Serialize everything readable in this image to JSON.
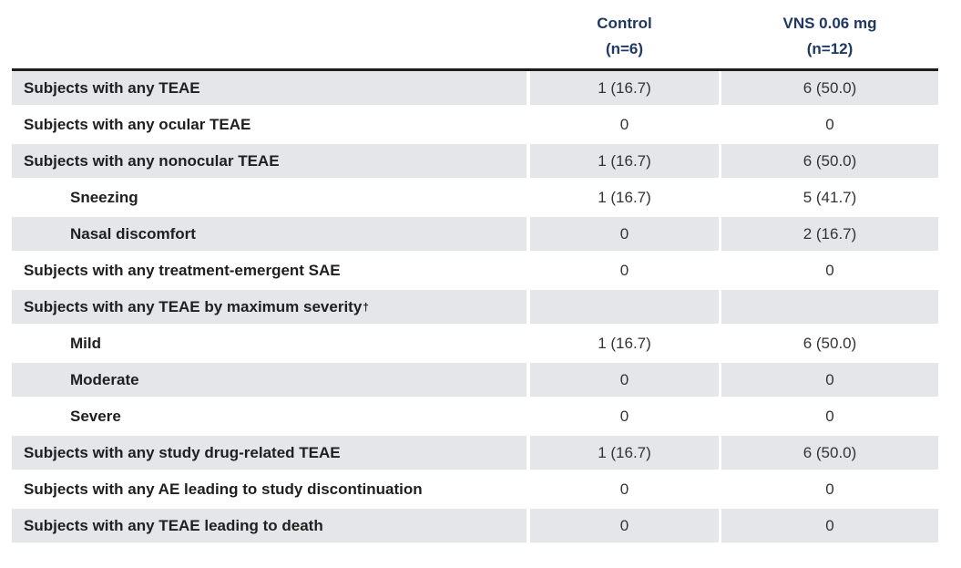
{
  "table": {
    "columns": [
      {
        "line1": "Control",
        "line2": "(n=6)"
      },
      {
        "line1": "VNS 0.06 mg",
        "line2": "(n=12)"
      }
    ],
    "rows": [
      {
        "label": "Subjects with any TEAE",
        "control": "1 (16.7)",
        "vns": "6 (50.0)"
      },
      {
        "label": "Subjects with any ocular TEAE",
        "control": "0",
        "vns": "0"
      },
      {
        "label": "Subjects with any nonocular TEAE",
        "control": "1 (16.7)",
        "vns": "6 (50.0)"
      },
      {
        "label": "Sneezing",
        "control": "1 (16.7)",
        "vns": "5 (41.7)"
      },
      {
        "label": "Nasal discomfort",
        "control": "0",
        "vns": "2 (16.7)"
      },
      {
        "label": "Subjects with any treatment-emergent SAE",
        "control": "0",
        "vns": "0"
      },
      {
        "label": "Subjects with any TEAE by maximum severity",
        "label_sup": "†",
        "control": "",
        "vns": ""
      },
      {
        "label": "Mild",
        "control": "1 (16.7)",
        "vns": "6 (50.0)"
      },
      {
        "label": "Moderate",
        "control": "0",
        "vns": "0"
      },
      {
        "label": "Severe",
        "control": "0",
        "vns": "0"
      },
      {
        "label": "Subjects with any study drug-related TEAE",
        "control": "1 (16.7)",
        "vns": "6 (50.0)"
      },
      {
        "label": "Subjects with any AE leading to study discontinuation",
        "control": "0",
        "vns": "0"
      },
      {
        "label": "Subjects with any TEAE leading to death",
        "control": "0",
        "vns": "0"
      }
    ],
    "colors": {
      "header_text": "#1f3864",
      "row_shade": "#e4e6e9",
      "divider": "#1c1c1c"
    }
  }
}
